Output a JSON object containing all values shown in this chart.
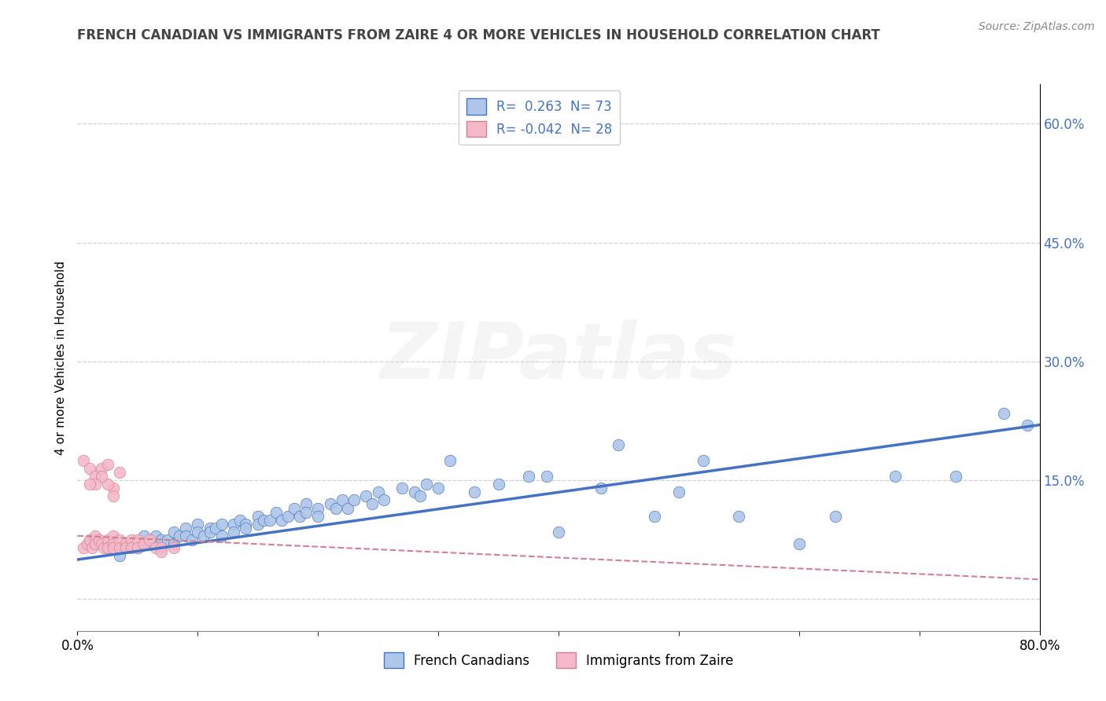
{
  "title": "FRENCH CANADIAN VS IMMIGRANTS FROM ZAIRE 4 OR MORE VEHICLES IN HOUSEHOLD CORRELATION CHART",
  "source": "Source: ZipAtlas.com",
  "ylabel": "4 or more Vehicles in Household",
  "xlim": [
    0.0,
    0.8
  ],
  "ylim": [
    -0.04,
    0.65
  ],
  "x_tick_positions": [
    0.0,
    0.8
  ],
  "x_tick_labels": [
    "0.0%",
    "80.0%"
  ],
  "y_ticks_right": [
    0.0,
    0.15,
    0.3,
    0.45,
    0.6
  ],
  "y_tick_labels_right": [
    "",
    "15.0%",
    "30.0%",
    "45.0%",
    "60.0%"
  ],
  "legend_label1": "French Canadians",
  "legend_label2": "Immigrants from Zaire",
  "R1": 0.263,
  "N1": 73,
  "R2": -0.042,
  "N2": 28,
  "color1": "#aec6e8",
  "color2": "#f4b8c8",
  "line_color1": "#4472c4",
  "line_color2": "#d48090",
  "background_color": "#ffffff",
  "grid_color": "#c8c8c8",
  "watermark": "ZIPatlas",
  "blue_scatter_x": [
    0.025,
    0.035,
    0.04,
    0.05,
    0.055,
    0.06,
    0.065,
    0.07,
    0.075,
    0.08,
    0.08,
    0.085,
    0.09,
    0.09,
    0.095,
    0.1,
    0.1,
    0.105,
    0.11,
    0.11,
    0.115,
    0.12,
    0.12,
    0.13,
    0.13,
    0.135,
    0.14,
    0.14,
    0.15,
    0.15,
    0.155,
    0.16,
    0.165,
    0.17,
    0.175,
    0.18,
    0.185,
    0.19,
    0.19,
    0.2,
    0.2,
    0.21,
    0.215,
    0.22,
    0.225,
    0.23,
    0.24,
    0.245,
    0.25,
    0.255,
    0.27,
    0.28,
    0.285,
    0.29,
    0.3,
    0.31,
    0.33,
    0.35,
    0.375,
    0.39,
    0.4,
    0.435,
    0.45,
    0.48,
    0.5,
    0.52,
    0.55,
    0.6,
    0.63,
    0.68,
    0.73,
    0.77,
    0.79
  ],
  "blue_scatter_y": [
    0.065,
    0.055,
    0.07,
    0.065,
    0.08,
    0.07,
    0.08,
    0.075,
    0.075,
    0.085,
    0.07,
    0.08,
    0.09,
    0.08,
    0.075,
    0.095,
    0.085,
    0.08,
    0.09,
    0.085,
    0.09,
    0.095,
    0.08,
    0.095,
    0.085,
    0.1,
    0.095,
    0.09,
    0.105,
    0.095,
    0.1,
    0.1,
    0.11,
    0.1,
    0.105,
    0.115,
    0.105,
    0.12,
    0.11,
    0.115,
    0.105,
    0.12,
    0.115,
    0.125,
    0.115,
    0.125,
    0.13,
    0.12,
    0.135,
    0.125,
    0.14,
    0.135,
    0.13,
    0.145,
    0.14,
    0.175,
    0.135,
    0.145,
    0.155,
    0.155,
    0.085,
    0.14,
    0.195,
    0.105,
    0.135,
    0.175,
    0.105,
    0.07,
    0.105,
    0.155,
    0.155,
    0.235,
    0.22
  ],
  "pink_scatter_x": [
    0.005,
    0.008,
    0.01,
    0.012,
    0.015,
    0.015,
    0.018,
    0.02,
    0.022,
    0.025,
    0.025,
    0.03,
    0.03,
    0.03,
    0.035,
    0.035,
    0.04,
    0.04,
    0.045,
    0.045,
    0.05,
    0.05,
    0.055,
    0.06,
    0.065,
    0.07,
    0.07,
    0.08
  ],
  "pink_scatter_y": [
    0.065,
    0.07,
    0.075,
    0.065,
    0.08,
    0.07,
    0.075,
    0.07,
    0.065,
    0.075,
    0.065,
    0.08,
    0.07,
    0.065,
    0.075,
    0.065,
    0.07,
    0.065,
    0.075,
    0.065,
    0.075,
    0.065,
    0.07,
    0.075,
    0.065,
    0.065,
    0.06,
    0.065
  ],
  "outlier_pink_x": [
    0.005,
    0.01,
    0.015,
    0.02,
    0.025,
    0.03,
    0.035,
    0.025,
    0.02,
    0.015,
    0.03,
    0.01
  ],
  "outlier_pink_y": [
    0.175,
    0.165,
    0.155,
    0.165,
    0.17,
    0.14,
    0.16,
    0.145,
    0.155,
    0.145,
    0.13,
    0.145
  ],
  "blue_line_x": [
    0.0,
    0.8
  ],
  "blue_line_y": [
    0.05,
    0.22
  ],
  "pink_line_x": [
    0.0,
    0.8
  ],
  "pink_line_y": [
    0.08,
    0.025
  ]
}
